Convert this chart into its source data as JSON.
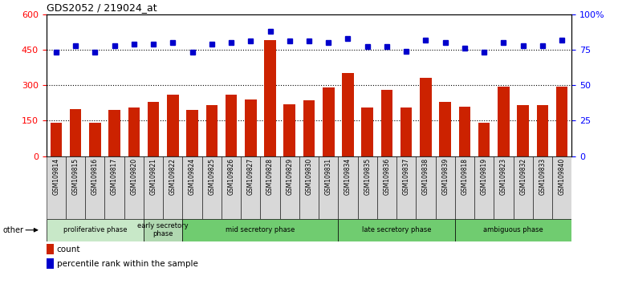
{
  "title": "GDS2052 / 219024_at",
  "samples": [
    "GSM109814",
    "GSM109815",
    "GSM109816",
    "GSM109817",
    "GSM109820",
    "GSM109821",
    "GSM109822",
    "GSM109824",
    "GSM109825",
    "GSM109826",
    "GSM109827",
    "GSM109828",
    "GSM109829",
    "GSM109830",
    "GSM109831",
    "GSM109834",
    "GSM109835",
    "GSM109836",
    "GSM109837",
    "GSM109838",
    "GSM109839",
    "GSM109818",
    "GSM109819",
    "GSM109823",
    "GSM109832",
    "GSM109833",
    "GSM109840"
  ],
  "counts": [
    140,
    200,
    140,
    195,
    205,
    230,
    260,
    195,
    215,
    260,
    240,
    490,
    220,
    235,
    290,
    350,
    205,
    280,
    205,
    330,
    230,
    210,
    140,
    295,
    215,
    215,
    295
  ],
  "percentiles": [
    73,
    78,
    73,
    78,
    79,
    79,
    80,
    73,
    79,
    80,
    81,
    88,
    81,
    81,
    80,
    83,
    77,
    77,
    74,
    82,
    80,
    76,
    73,
    80,
    78,
    78,
    82
  ],
  "phases": [
    {
      "label": "proliferative phase",
      "start": 0,
      "end": 5,
      "color": "#b8e0b8"
    },
    {
      "label": "early secretory\nphase",
      "start": 5,
      "end": 7,
      "color": "#a0d0a0"
    },
    {
      "label": "mid secretory phase",
      "start": 7,
      "end": 15,
      "color": "#60c060"
    },
    {
      "label": "late secretory phase",
      "start": 15,
      "end": 21,
      "color": "#60c060"
    },
    {
      "label": "ambiguous phase",
      "start": 21,
      "end": 27,
      "color": "#60c060"
    }
  ],
  "bar_color": "#cc2200",
  "dot_color": "#0000cc",
  "left_ylim": [
    0,
    600
  ],
  "right_ylim": [
    0,
    100
  ],
  "left_yticks": [
    0,
    150,
    300,
    450,
    600
  ],
  "right_yticks": [
    0,
    25,
    50,
    75,
    100
  ],
  "grid_values": [
    150,
    300,
    450
  ]
}
